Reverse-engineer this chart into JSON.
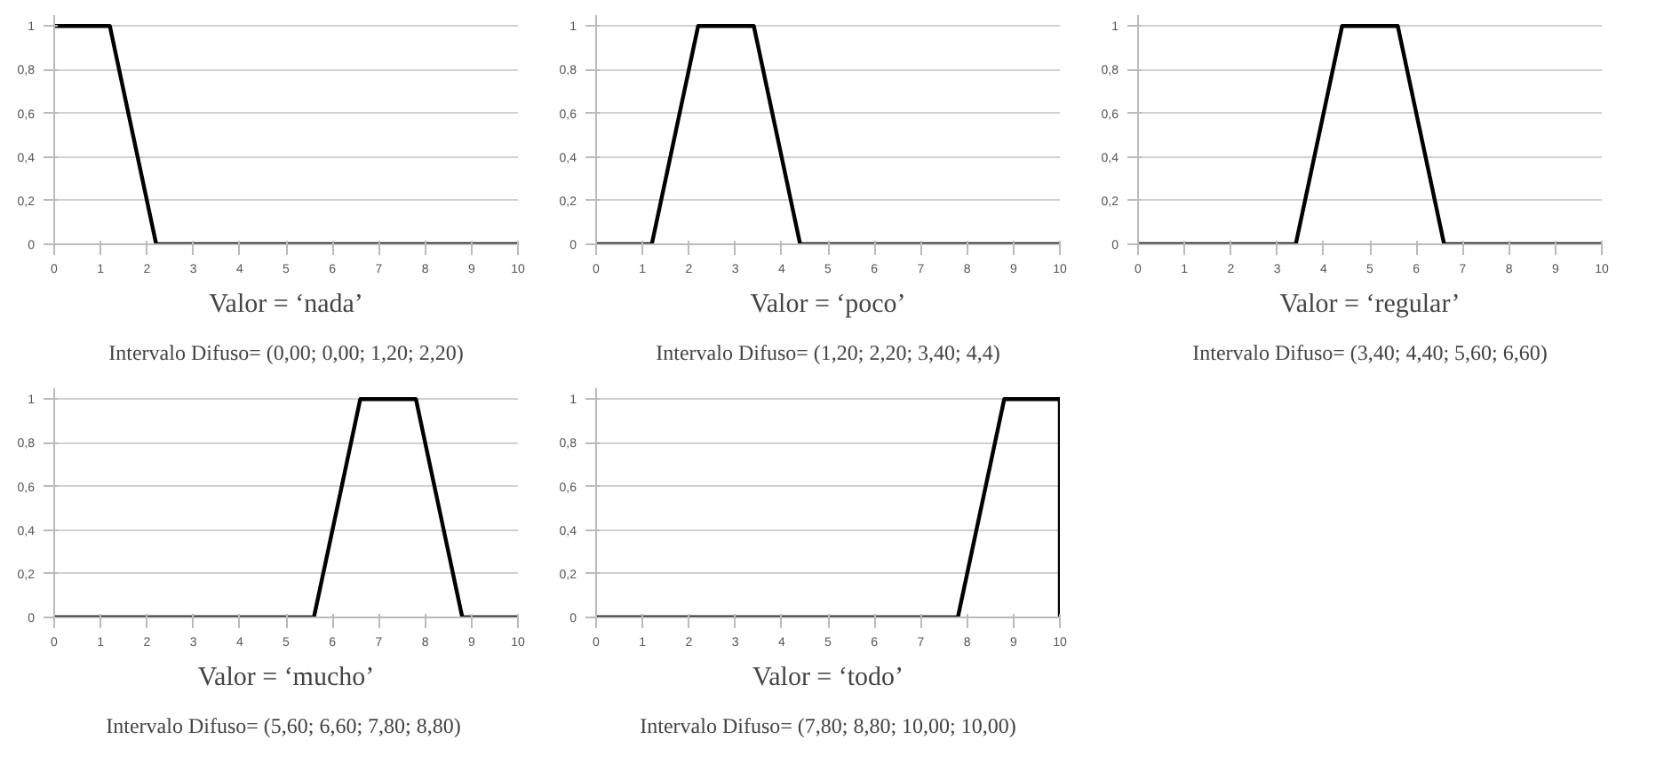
{
  "chart_data": [
    {
      "type": "line",
      "title": "Valor = ‘nada’",
      "subtitle": "Intervalo Difuso= (0,00; 0,00; 1,20; 2,20)",
      "x": [
        0,
        1.2,
        2.2,
        10
      ],
      "series": [
        {
          "color": "#000000",
          "values": [
            1,
            1,
            0,
            0
          ]
        }
      ],
      "xlim": [
        0,
        10
      ],
      "ylim": [
        0,
        1.05
      ],
      "xticks": [
        0,
        1,
        2,
        3,
        4,
        5,
        6,
        7,
        8,
        9,
        10
      ],
      "yticks": [
        0,
        {
          "value": 0.2,
          "label": "0,2"
        },
        {
          "value": 0.4,
          "label": "0,4"
        },
        {
          "value": 0.6,
          "label": "0,6"
        },
        {
          "value": 0.8,
          "label": "0,8"
        },
        1
      ],
      "grid": "y"
    },
    {
      "type": "line",
      "title": "Valor = ‘poco’",
      "subtitle": "Intervalo Difuso= (1,20; 2,20; 3,40; 4,4)",
      "x": [
        0,
        1.2,
        2.2,
        3.4,
        4.4,
        10
      ],
      "series": [
        {
          "color": "#000000",
          "values": [
            0,
            0,
            1,
            1,
            0,
            0
          ]
        }
      ],
      "xlim": [
        0,
        10
      ],
      "ylim": [
        0,
        1.05
      ],
      "xticks": [
        0,
        1,
        2,
        3,
        4,
        5,
        6,
        7,
        8,
        9,
        10
      ],
      "yticks": [
        0,
        {
          "value": 0.2,
          "label": "0,2"
        },
        {
          "value": 0.4,
          "label": "0,4"
        },
        {
          "value": 0.6,
          "label": "0,6"
        },
        {
          "value": 0.8,
          "label": "0,8"
        },
        1
      ],
      "grid": "y"
    },
    {
      "type": "line",
      "title": "Valor = ‘regular’",
      "subtitle": "Intervalo Difuso= (3,40; 4,40; 5,60; 6,60)",
      "x": [
        0,
        3.4,
        4.4,
        5.6,
        6.6,
        10
      ],
      "series": [
        {
          "color": "#000000",
          "values": [
            0,
            0,
            1,
            1,
            0,
            0
          ]
        }
      ],
      "xlim": [
        0,
        10
      ],
      "ylim": [
        0,
        1.05
      ],
      "xticks": [
        0,
        1,
        2,
        3,
        4,
        5,
        6,
        7,
        8,
        9,
        10
      ],
      "yticks": [
        0,
        {
          "value": 0.2,
          "label": "0,2"
        },
        {
          "value": 0.4,
          "label": "0,4"
        },
        {
          "value": 0.6,
          "label": "0,6"
        },
        {
          "value": 0.8,
          "label": "0,8"
        },
        1
      ],
      "grid": "y"
    },
    {
      "type": "line",
      "title": "Valor = ‘mucho’",
      "subtitle": "Intervalo Difuso= (5,60;  6,60; 7,80; 8,80)",
      "x": [
        0,
        5.6,
        6.6,
        7.8,
        8.8,
        10
      ],
      "series": [
        {
          "color": "#000000",
          "values": [
            0,
            0,
            1,
            1,
            0,
            0
          ]
        }
      ],
      "xlim": [
        0,
        10
      ],
      "ylim": [
        0,
        1.05
      ],
      "xticks": [
        0,
        1,
        2,
        3,
        4,
        5,
        6,
        7,
        8,
        9,
        10
      ],
      "yticks": [
        0,
        {
          "value": 0.2,
          "label": "0,2"
        },
        {
          "value": 0.4,
          "label": "0,4"
        },
        {
          "value": 0.6,
          "label": "0,6"
        },
        {
          "value": 0.8,
          "label": "0,8"
        },
        1
      ],
      "grid": "y"
    },
    {
      "type": "line",
      "title": "Valor = ‘todo’",
      "subtitle": "Intervalo Difuso= (7,80; 8,80; 10,00; 10,00)",
      "x": [
        0,
        7.8,
        8.8,
        10,
        10
      ],
      "series": [
        {
          "color": "#000000",
          "values": [
            0,
            0,
            1,
            1,
            0
          ]
        }
      ],
      "xlim": [
        0,
        10
      ],
      "ylim": [
        0,
        1.05
      ],
      "xticks": [
        0,
        1,
        2,
        3,
        4,
        5,
        6,
        7,
        8,
        9,
        10
      ],
      "yticks": [
        0,
        {
          "value": 0.2,
          "label": "0,2"
        },
        {
          "value": 0.4,
          "label": "0,4"
        },
        {
          "value": 0.6,
          "label": "0,6"
        },
        {
          "value": 0.8,
          "label": "0,8"
        },
        1
      ],
      "grid": "y"
    }
  ]
}
